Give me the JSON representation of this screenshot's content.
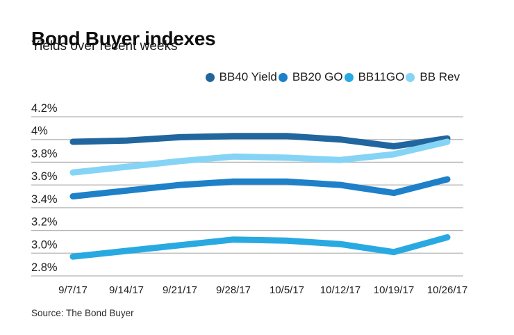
{
  "header": {
    "title": "Bond Buyer indexes",
    "subtitle": "Yields over recent weeks"
  },
  "footer": {
    "source": "Source: The Bond Buyer"
  },
  "colors": {
    "gridline": "#b5b5b5",
    "axis_text": "#222222",
    "background": "#ffffff"
  },
  "chart_data": {
    "type": "line",
    "title": "Bond Buyer indexes",
    "subtitle": "Yields over recent weeks",
    "x": [
      "9/7/17",
      "9/14/17",
      "9/21/17",
      "9/28/17",
      "10/5/17",
      "10/12/17",
      "10/19/17",
      "10/26/17"
    ],
    "series": [
      {
        "name": "BB40 Yield",
        "color": "#21669e",
        "values": [
          3.98,
          3.99,
          4.02,
          4.03,
          4.03,
          4.0,
          3.94,
          4.01
        ]
      },
      {
        "name": "BB20 GO",
        "color": "#1d80c9",
        "values": [
          3.5,
          3.55,
          3.6,
          3.63,
          3.63,
          3.6,
          3.53,
          3.65
        ]
      },
      {
        "name": "BB11GO",
        "color": "#29a9e1",
        "values": [
          2.97,
          3.02,
          3.07,
          3.12,
          3.11,
          3.08,
          3.01,
          3.14
        ]
      },
      {
        "name": "BB Rev",
        "color": "#85d4f5",
        "values": [
          3.71,
          3.76,
          3.81,
          3.85,
          3.84,
          3.82,
          3.87,
          3.98
        ]
      }
    ],
    "ylim": [
      2.8,
      4.2
    ],
    "yticks": [
      {
        "value": 4.2,
        "label": "4.2%"
      },
      {
        "value": 4.0,
        "label": "4%"
      },
      {
        "value": 3.8,
        "label": "3.8%"
      },
      {
        "value": 3.6,
        "label": "3.6%"
      },
      {
        "value": 3.4,
        "label": "3.4%"
      },
      {
        "value": 3.2,
        "label": "3.2%"
      },
      {
        "value": 3.0,
        "label": "3.0%"
      },
      {
        "value": 2.8,
        "label": "2.8%"
      }
    ],
    "grid": true,
    "legend_position": "top-right",
    "line_width": 9
  }
}
